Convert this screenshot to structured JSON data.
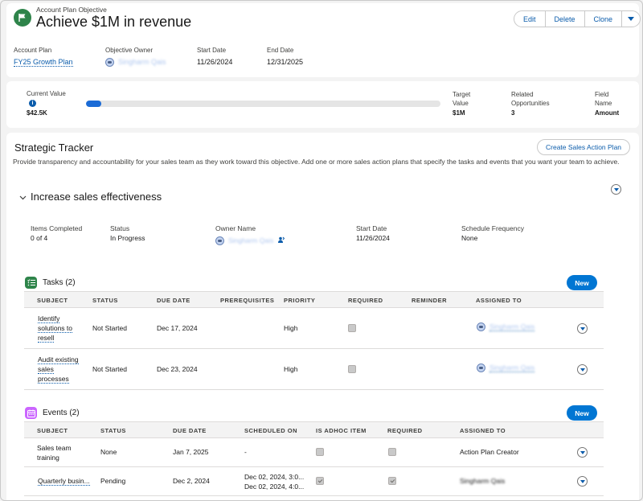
{
  "header": {
    "subtitle": "Account Plan Objective",
    "title": "Achieve $1M in revenue",
    "buttons": {
      "edit": "Edit",
      "delete": "Delete",
      "clone": "Clone"
    },
    "fields": {
      "account_plan_label": "Account Plan",
      "account_plan_value": "FY25 Growth Plan",
      "owner_label": "Objective Owner",
      "owner_value": "Singharm Qais",
      "start_label": "Start Date",
      "start_value": "11/26/2024",
      "end_label": "End Date",
      "end_value": "12/31/2025"
    }
  },
  "progress": {
    "current_label": "Current Value",
    "current_value": "$42.5K",
    "fill_fraction": 0.0425,
    "target_label_1": "Target",
    "target_label_2": "Value",
    "target_value": "$1M",
    "related_label_1": "Related",
    "related_label_2": "Opportunities",
    "related_value": "3",
    "field_label_1": "Field",
    "field_label_2": "Name",
    "field_value": "Amount"
  },
  "tracker": {
    "title": "Strategic Tracker",
    "create_button": "Create Sales Action Plan",
    "description": "Provide transparency and accountability for your sales team as they work toward this objective. Add one or more sales action plans that specify the tasks and events that you want your team to achieve.",
    "section": {
      "title": "Increase sales effectiveness",
      "items_label": "Items Completed",
      "items_value": "0 of 4",
      "status_label": "Status",
      "status_value": "In Progress",
      "owner_label": "Owner Name",
      "owner_value": "Singharm Qais",
      "start_label": "Start Date",
      "start_value": "11/26/2024",
      "freq_label": "Schedule Frequency",
      "freq_value": "None"
    },
    "tasks": {
      "title": "Tasks (2)",
      "new_label": "New",
      "columns": [
        "SUBJECT",
        "STATUS",
        "DUE DATE",
        "PREREQUISITES",
        "PRIORITY",
        "REQUIRED",
        "REMINDER",
        "ASSIGNED TO"
      ],
      "rows": [
        {
          "subject": [
            "Identify",
            "solutions to",
            "resell"
          ],
          "status": "Not Started",
          "due": "Dec 17, 2024",
          "priority": "High",
          "assigned": "Singharm Qais"
        },
        {
          "subject": [
            "Audit existing",
            "sales",
            "processes"
          ],
          "status": "Not Started",
          "due": "Dec 23, 2024",
          "priority": "High",
          "assigned": "Singharm Qais"
        }
      ]
    },
    "events": {
      "title": "Events (2)",
      "new_label": "New",
      "columns": [
        "SUBJECT",
        "STATUS",
        "DUE DATE",
        "SCHEDULED ON",
        "IS ADHOC ITEM",
        "REQUIRED",
        "ASSIGNED TO"
      ],
      "rows": [
        {
          "subject_1": "Sales team",
          "subject_2": "training",
          "status": "None",
          "due": "Jan 7, 2025",
          "scheduled": "-",
          "assigned": "Action Plan Creator"
        },
        {
          "subject": "Quarterly busin...",
          "status": "Pending",
          "due": "Dec 2, 2024",
          "scheduled_1": "Dec 02, 2024, 3:0...",
          "scheduled_2": "Dec 02, 2024, 4:0...",
          "assigned": "Singharm Qais"
        }
      ]
    }
  },
  "colors": {
    "accent": "#0176d3",
    "objective_icon": "#2e844a",
    "tasks_icon": "#2e844a",
    "events_icon": "#cb65ff",
    "link": "#0b5cab"
  }
}
